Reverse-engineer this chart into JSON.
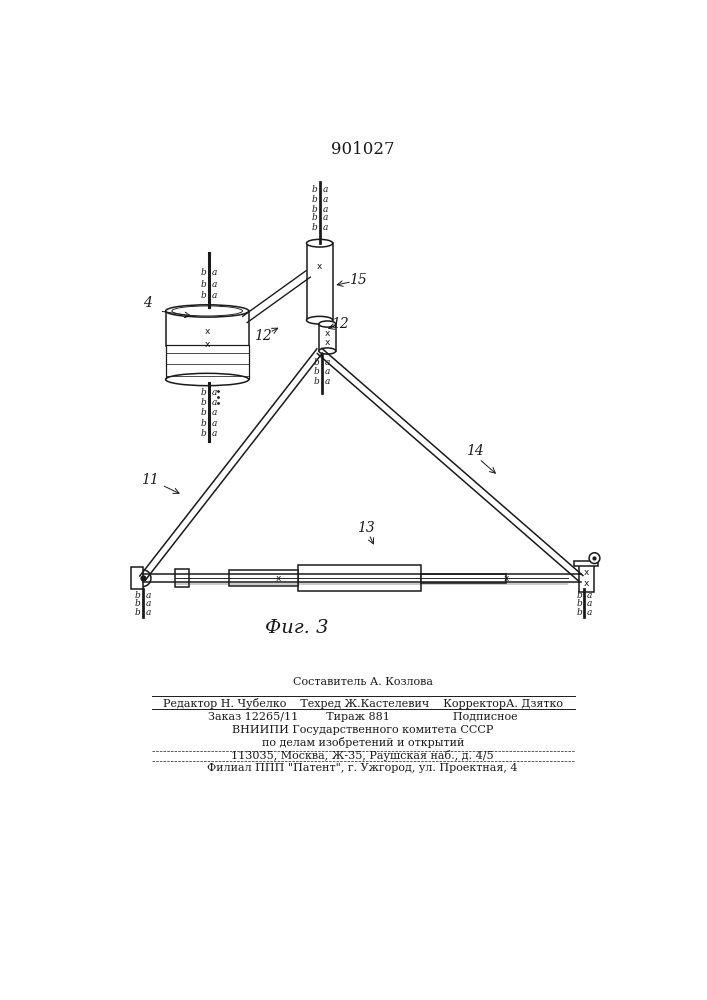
{
  "title": "901027",
  "fig_label": "Фиг. 3",
  "line_color": "#1a1a1a",
  "label_4": "4",
  "label_11": "11",
  "label_12a": "12",
  "label_12b": "12",
  "label_13": "13",
  "label_14": "14",
  "label_15": "15",
  "footer_lines": [
    "Составитель А. Козлова",
    "Редактор Н. Чубелко    Техред Ж.Кастелевич    КорректорА. Дзятко",
    "Заказ 12265/11        Тираж 881                  Подписное",
    "ВНИИПИ Государственного комитета СССР",
    "по делам изобретений и открытий",
    "113035, Москва, Ж-35, Раушская наб., д. 4/5",
    "Филиал ППП \"Патент\", г. Ужгород, ул. Проектная, 4"
  ]
}
